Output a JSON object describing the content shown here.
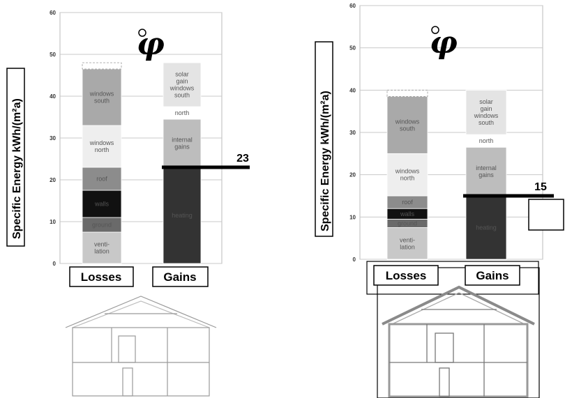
{
  "chart_data": [
    {
      "type": "bar",
      "stacked": true,
      "ylabel": "Specific Energy kWh/(m²a)",
      "ylim": [
        0,
        60
      ],
      "yticks": [
        "0",
        "10",
        "20",
        "30",
        "40",
        "50",
        "60"
      ],
      "grid": true,
      "categories": [
        "Losses",
        "Gains"
      ],
      "bars": [
        {
          "category": "Losses",
          "total": 48,
          "segments": [
            {
              "label": "venti-\nlation",
              "value": 7.5,
              "color": "#c8c8c8"
            },
            {
              "label": "ground",
              "value": 3.5,
              "color": "#6a6a6a"
            },
            {
              "label": "walls",
              "value": 6.5,
              "color": "#111111"
            },
            {
              "label": "roof",
              "value": 5.5,
              "color": "#8c8c8c"
            },
            {
              "label": "windows\nnorth",
              "value": 10,
              "color": "#eeeeee"
            },
            {
              "label": "windows\nsouth",
              "value": 13.5,
              "color": "#a9a9a9"
            },
            {
              "label": "",
              "value": 1.5,
              "color": "#ffffff",
              "dashed": true
            }
          ]
        },
        {
          "category": "Gains",
          "total": 48,
          "segments": [
            {
              "label": "heating",
              "value": 23,
              "color": "#333333"
            },
            {
              "label": "internal\ngains",
              "value": 11.5,
              "color": "#bdbdbd"
            },
            {
              "label": "north",
              "value": 3,
              "color": "#ffffff"
            },
            {
              "label": "solar\ngain\nwindows\nsouth",
              "value": 10.5,
              "color": "#e4e4e4"
            }
          ]
        }
      ],
      "annotation": {
        "label": "23",
        "value": 23
      }
    },
    {
      "type": "bar",
      "stacked": true,
      "ylabel": "Specific Energy kWh/(m²a)",
      "ylim": [
        0,
        60
      ],
      "yticks": [
        "0",
        "10",
        "20",
        "30",
        "40",
        "50",
        "60"
      ],
      "grid": true,
      "categories": [
        "Losses",
        "Gains"
      ],
      "bars": [
        {
          "category": "Losses",
          "total": 40,
          "segments": [
            {
              "label": "venti-\nlation",
              "value": 7.5,
              "color": "#c8c8c8"
            },
            {
              "label": "ground",
              "value": 2,
              "color": "#6a6a6a"
            },
            {
              "label": "walls",
              "value": 2.5,
              "color": "#111111"
            },
            {
              "label": "roof",
              "value": 3,
              "color": "#8c8c8c"
            },
            {
              "label": "windows\nnorth",
              "value": 10,
              "color": "#eeeeee"
            },
            {
              "label": "windows\nsouth",
              "value": 13.5,
              "color": "#a9a9a9"
            },
            {
              "label": "",
              "value": 1.5,
              "color": "#ffffff",
              "dashed": true
            }
          ]
        },
        {
          "category": "Gains",
          "total": 40,
          "segments": [
            {
              "label": "heating",
              "value": 15,
              "color": "#333333"
            },
            {
              "label": "internal\ngains",
              "value": 11.5,
              "color": "#bdbdbd"
            },
            {
              "label": "north",
              "value": 3,
              "color": "#ffffff"
            },
            {
              "label": "solar\ngain\nwindows\nsouth",
              "value": 10.5,
              "color": "#e4e4e4"
            }
          ]
        }
      ],
      "annotation": {
        "label": "15",
        "value": 15
      }
    }
  ]
}
